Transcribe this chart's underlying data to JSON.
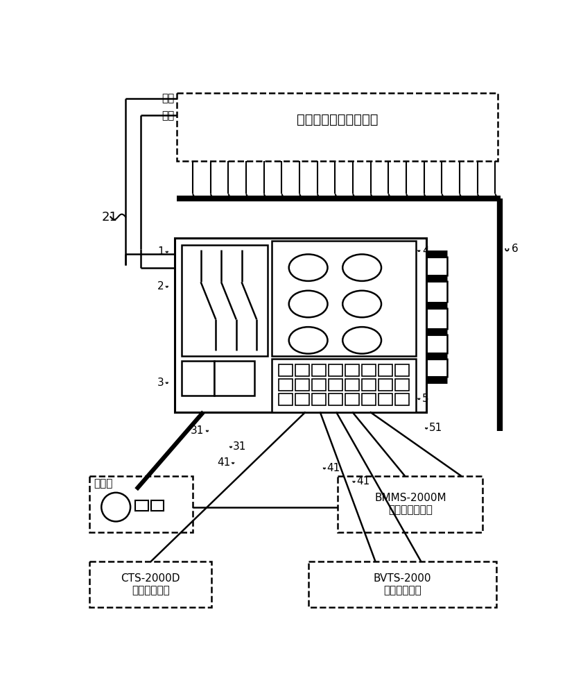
{
  "bg": "#ffffff",
  "lc": "#000000",
  "fw": 8.29,
  "fh": 10.0,
  "dpi": 100,
  "t": {
    "bat": "被测试变电站蓄电池组",
    "pos": "正极",
    "neg": "负极",
    "n21": "21",
    "n1": "1",
    "n2": "2",
    "n3": "3",
    "n4": "4",
    "n5": "5",
    "n6": "6",
    "n31": "31",
    "n41": "41",
    "n51": "51",
    "loadbox": "负载箱",
    "bmms": "BMMS-2000M\n蓄电池监测装置",
    "cts": "CTS-2000D\n容量测试装置",
    "bvts": "BVTS-2000\n电压测试装置"
  }
}
